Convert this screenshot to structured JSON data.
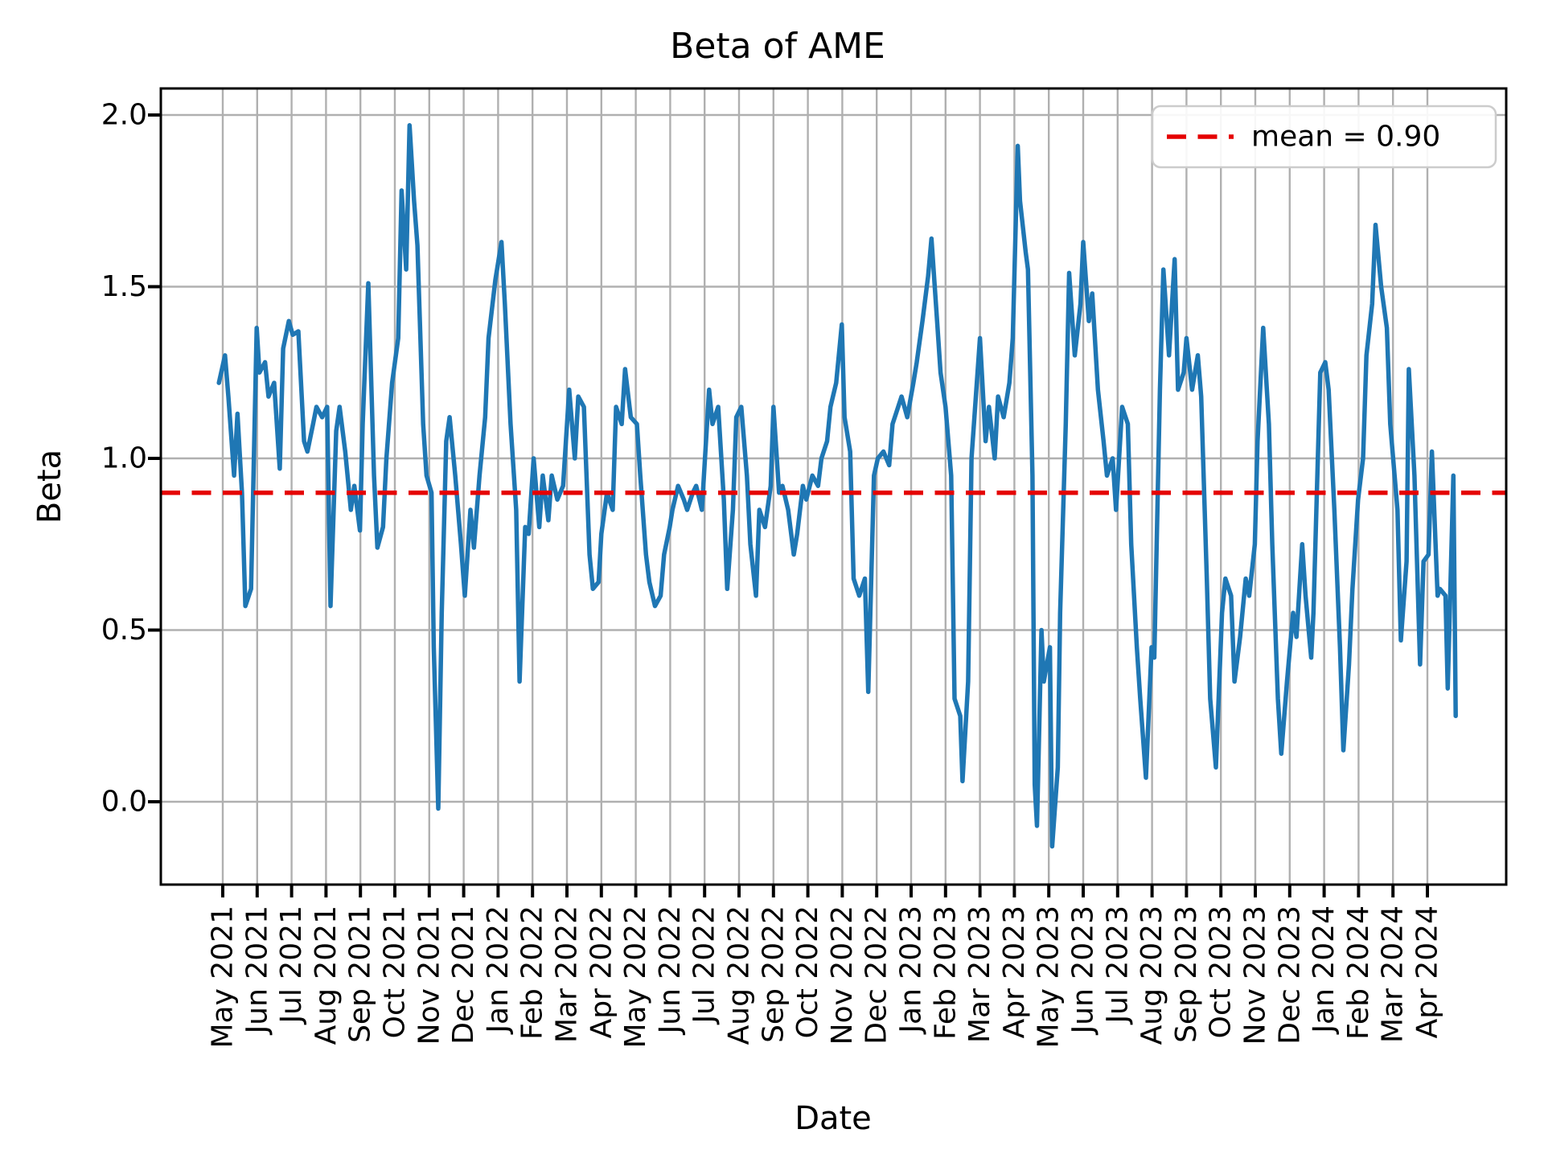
{
  "title": "Beta of AME",
  "axes": {
    "xlabel": "Date",
    "ylabel": "Beta",
    "y_ticks": [
      "2.0",
      "1.5",
      "1.0",
      "0.5",
      "0.0"
    ]
  },
  "legend": {
    "label": "mean = 0.90"
  },
  "colors": {
    "line": "#1f77b4",
    "mean_line": "#e50000",
    "grid": "#b0b0b0",
    "spine": "#000000",
    "legend_border": "#cccccc",
    "background": "#ffffff"
  },
  "chart_data": {
    "type": "line",
    "title": "Beta of AME",
    "xlabel": "Date",
    "ylabel": "Beta",
    "grid": true,
    "legend_position": "upper right",
    "mean": 0.9,
    "mean_label": "mean = 0.90",
    "ylim": [
      -0.24,
      2.08
    ],
    "y_tick_values": [
      0.0,
      0.5,
      1.0,
      1.5,
      2.0
    ],
    "x_tick_labels": [
      "May 2021",
      "Jun 2021",
      "Jul 2021",
      "Aug 2021",
      "Sep 2021",
      "Oct 2021",
      "Nov 2021",
      "Dec 2021",
      "Jan 2022",
      "Feb 2022",
      "Mar 2022",
      "Apr 2022",
      "May 2022",
      "Jun 2022",
      "Jul 2022",
      "Aug 2022",
      "Sep 2022",
      "Oct 2022",
      "Nov 2022",
      "Dec 2022",
      "Jan 2023",
      "Feb 2023",
      "Mar 2023",
      "Apr 2023",
      "May 2023",
      "Jun 2023",
      "Jul 2023",
      "Aug 2023",
      "Sep 2023",
      "Oct 2023",
      "Nov 2023",
      "Dec 2023",
      "Jan 2024",
      "Feb 2024",
      "Mar 2024",
      "Apr 2024"
    ],
    "series": [
      {
        "name": "Beta of AME",
        "points": [
          [
            "2021-04-28",
            1.22
          ],
          [
            "2021-05-03",
            1.3
          ],
          [
            "2021-05-06",
            1.18
          ],
          [
            "2021-05-11",
            0.95
          ],
          [
            "2021-05-14",
            1.13
          ],
          [
            "2021-05-18",
            0.9
          ],
          [
            "2021-05-21",
            0.57
          ],
          [
            "2021-05-26",
            0.62
          ],
          [
            "2021-05-31",
            1.38
          ],
          [
            "2021-06-03",
            1.25
          ],
          [
            "2021-06-08",
            1.28
          ],
          [
            "2021-06-11",
            1.18
          ],
          [
            "2021-06-16",
            1.22
          ],
          [
            "2021-06-21",
            0.97
          ],
          [
            "2021-06-24",
            1.32
          ],
          [
            "2021-06-29",
            1.4
          ],
          [
            "2021-07-02",
            1.36
          ],
          [
            "2021-07-07",
            1.37
          ],
          [
            "2021-07-12",
            1.05
          ],
          [
            "2021-07-15",
            1.02
          ],
          [
            "2021-07-20",
            1.1
          ],
          [
            "2021-07-23",
            1.15
          ],
          [
            "2021-07-28",
            1.12
          ],
          [
            "2021-08-02",
            1.15
          ],
          [
            "2021-08-05",
            0.57
          ],
          [
            "2021-08-10",
            1.08
          ],
          [
            "2021-08-13",
            1.15
          ],
          [
            "2021-08-18",
            1.02
          ],
          [
            "2021-08-23",
            0.85
          ],
          [
            "2021-08-26",
            0.92
          ],
          [
            "2021-08-31",
            0.79
          ],
          [
            "2021-09-03",
            1.1
          ],
          [
            "2021-09-08",
            1.51
          ],
          [
            "2021-09-13",
            0.95
          ],
          [
            "2021-09-16",
            0.74
          ],
          [
            "2021-09-21",
            0.8
          ],
          [
            "2021-09-24",
            1.0
          ],
          [
            "2021-09-29",
            1.22
          ],
          [
            "2021-10-04",
            1.35
          ],
          [
            "2021-10-07",
            1.78
          ],
          [
            "2021-10-11",
            1.55
          ],
          [
            "2021-10-14",
            1.97
          ],
          [
            "2021-10-18",
            1.75
          ],
          [
            "2021-10-21",
            1.62
          ],
          [
            "2021-10-26",
            1.1
          ],
          [
            "2021-10-29",
            0.95
          ],
          [
            "2021-11-03",
            0.9
          ],
          [
            "2021-11-05",
            0.45
          ],
          [
            "2021-11-09",
            -0.02
          ],
          [
            "2021-11-12",
            0.55
          ],
          [
            "2021-11-16",
            1.05
          ],
          [
            "2021-11-19",
            1.12
          ],
          [
            "2021-11-24",
            0.95
          ],
          [
            "2021-11-29",
            0.75
          ],
          [
            "2021-12-02",
            0.6
          ],
          [
            "2021-12-07",
            0.85
          ],
          [
            "2021-12-10",
            0.74
          ],
          [
            "2021-12-15",
            0.95
          ],
          [
            "2021-12-20",
            1.12
          ],
          [
            "2021-12-23",
            1.35
          ],
          [
            "2021-12-29",
            1.52
          ],
          [
            "2022-01-04",
            1.63
          ],
          [
            "2022-01-07",
            1.45
          ],
          [
            "2022-01-12",
            1.1
          ],
          [
            "2022-01-17",
            0.85
          ],
          [
            "2022-01-20",
            0.35
          ],
          [
            "2022-01-25",
            0.8
          ],
          [
            "2022-01-28",
            0.78
          ],
          [
            "2022-02-02",
            1.0
          ],
          [
            "2022-02-07",
            0.8
          ],
          [
            "2022-02-10",
            0.95
          ],
          [
            "2022-02-15",
            0.82
          ],
          [
            "2022-02-18",
            0.95
          ],
          [
            "2022-02-23",
            0.88
          ],
          [
            "2022-02-28",
            0.92
          ],
          [
            "2022-03-03",
            1.2
          ],
          [
            "2022-03-08",
            1.0
          ],
          [
            "2022-03-11",
            1.18
          ],
          [
            "2022-03-16",
            1.15
          ],
          [
            "2022-03-21",
            0.72
          ],
          [
            "2022-03-24",
            0.62
          ],
          [
            "2022-03-29",
            0.64
          ],
          [
            "2022-04-01",
            0.78
          ],
          [
            "2022-04-06",
            0.9
          ],
          [
            "2022-04-11",
            0.85
          ],
          [
            "2022-04-14",
            1.15
          ],
          [
            "2022-04-19",
            1.1
          ],
          [
            "2022-04-22",
            1.26
          ],
          [
            "2022-04-27",
            1.12
          ],
          [
            "2022-05-02",
            1.1
          ],
          [
            "2022-05-05",
            0.95
          ],
          [
            "2022-05-10",
            0.72
          ],
          [
            "2022-05-13",
            0.64
          ],
          [
            "2022-05-18",
            0.57
          ],
          [
            "2022-05-23",
            0.6
          ],
          [
            "2022-05-26",
            0.72
          ],
          [
            "2022-05-31",
            0.8
          ],
          [
            "2022-06-03",
            0.85
          ],
          [
            "2022-06-08",
            0.92
          ],
          [
            "2022-06-13",
            0.88
          ],
          [
            "2022-06-16",
            0.85
          ],
          [
            "2022-06-21",
            0.9
          ],
          [
            "2022-06-24",
            0.92
          ],
          [
            "2022-06-29",
            0.85
          ],
          [
            "2022-07-05",
            1.2
          ],
          [
            "2022-07-08",
            1.1
          ],
          [
            "2022-07-13",
            1.15
          ],
          [
            "2022-07-18",
            0.88
          ],
          [
            "2022-07-21",
            0.62
          ],
          [
            "2022-07-26",
            0.85
          ],
          [
            "2022-07-29",
            1.12
          ],
          [
            "2022-08-03",
            1.15
          ],
          [
            "2022-08-08",
            0.95
          ],
          [
            "2022-08-11",
            0.75
          ],
          [
            "2022-08-16",
            0.6
          ],
          [
            "2022-08-19",
            0.85
          ],
          [
            "2022-08-24",
            0.8
          ],
          [
            "2022-08-29",
            0.92
          ],
          [
            "2022-09-01",
            1.15
          ],
          [
            "2022-09-06",
            0.9
          ],
          [
            "2022-09-09",
            0.92
          ],
          [
            "2022-09-14",
            0.85
          ],
          [
            "2022-09-19",
            0.72
          ],
          [
            "2022-09-22",
            0.78
          ],
          [
            "2022-09-27",
            0.92
          ],
          [
            "2022-09-30",
            0.88
          ],
          [
            "2022-10-05",
            0.95
          ],
          [
            "2022-10-10",
            0.92
          ],
          [
            "2022-10-13",
            1.0
          ],
          [
            "2022-10-18",
            1.05
          ],
          [
            "2022-10-21",
            1.15
          ],
          [
            "2022-10-26",
            1.22
          ],
          [
            "2022-10-31",
            1.39
          ],
          [
            "2022-11-03",
            1.12
          ],
          [
            "2022-11-08",
            1.02
          ],
          [
            "2022-11-11",
            0.65
          ],
          [
            "2022-11-16",
            0.6
          ],
          [
            "2022-11-21",
            0.65
          ],
          [
            "2022-11-24",
            0.32
          ],
          [
            "2022-11-29",
            0.95
          ],
          [
            "2022-12-02",
            1.0
          ],
          [
            "2022-12-07",
            1.02
          ],
          [
            "2022-12-12",
            0.98
          ],
          [
            "2022-12-15",
            1.1
          ],
          [
            "2022-12-20",
            1.15
          ],
          [
            "2022-12-23",
            1.18
          ],
          [
            "2022-12-28",
            1.12
          ],
          [
            "2023-01-03",
            1.22
          ],
          [
            "2023-01-06",
            1.28
          ],
          [
            "2023-01-11",
            1.4
          ],
          [
            "2023-01-16",
            1.53
          ],
          [
            "2023-01-19",
            1.64
          ],
          [
            "2023-01-24",
            1.4
          ],
          [
            "2023-01-27",
            1.25
          ],
          [
            "2023-02-01",
            1.15
          ],
          [
            "2023-02-06",
            0.95
          ],
          [
            "2023-02-09",
            0.3
          ],
          [
            "2023-02-14",
            0.25
          ],
          [
            "2023-02-16",
            0.06
          ],
          [
            "2023-02-21",
            0.35
          ],
          [
            "2023-02-24",
            1.0
          ],
          [
            "2023-03-01",
            1.35
          ],
          [
            "2023-03-06",
            1.05
          ],
          [
            "2023-03-09",
            1.15
          ],
          [
            "2023-03-14",
            1.0
          ],
          [
            "2023-03-17",
            1.18
          ],
          [
            "2023-03-22",
            1.12
          ],
          [
            "2023-03-27",
            1.22
          ],
          [
            "2023-03-30",
            1.35
          ],
          [
            "2023-04-04",
            1.91
          ],
          [
            "2023-04-06",
            1.75
          ],
          [
            "2023-04-11",
            1.6
          ],
          [
            "2023-04-13",
            1.55
          ],
          [
            "2023-04-17",
            0.95
          ],
          [
            "2023-04-19",
            0.05
          ],
          [
            "2023-04-21",
            -0.07
          ],
          [
            "2023-04-25",
            0.5
          ],
          [
            "2023-04-27",
            0.35
          ],
          [
            "2023-05-02",
            0.45
          ],
          [
            "2023-05-04",
            -0.13
          ],
          [
            "2023-05-09",
            0.1
          ],
          [
            "2023-05-11",
            0.55
          ],
          [
            "2023-05-16",
            1.1
          ],
          [
            "2023-05-19",
            1.54
          ],
          [
            "2023-05-24",
            1.3
          ],
          [
            "2023-05-29",
            1.45
          ],
          [
            "2023-06-01",
            1.63
          ],
          [
            "2023-06-06",
            1.4
          ],
          [
            "2023-06-09",
            1.48
          ],
          [
            "2023-06-14",
            1.2
          ],
          [
            "2023-06-19",
            1.05
          ],
          [
            "2023-06-22",
            0.95
          ],
          [
            "2023-06-27",
            1.0
          ],
          [
            "2023-06-30",
            0.85
          ],
          [
            "2023-07-05",
            1.15
          ],
          [
            "2023-07-10",
            1.1
          ],
          [
            "2023-07-13",
            0.75
          ],
          [
            "2023-07-18",
            0.45
          ],
          [
            "2023-07-21",
            0.3
          ],
          [
            "2023-07-26",
            0.07
          ],
          [
            "2023-07-31",
            0.45
          ],
          [
            "2023-08-03",
            0.42
          ],
          [
            "2023-08-08",
            1.2
          ],
          [
            "2023-08-11",
            1.55
          ],
          [
            "2023-08-16",
            1.3
          ],
          [
            "2023-08-21",
            1.58
          ],
          [
            "2023-08-24",
            1.2
          ],
          [
            "2023-08-29",
            1.25
          ],
          [
            "2023-09-01",
            1.35
          ],
          [
            "2023-09-06",
            1.2
          ],
          [
            "2023-09-11",
            1.3
          ],
          [
            "2023-09-14",
            1.18
          ],
          [
            "2023-09-19",
            0.65
          ],
          [
            "2023-09-22",
            0.3
          ],
          [
            "2023-09-27",
            0.1
          ],
          [
            "2023-10-02",
            0.55
          ],
          [
            "2023-10-05",
            0.65
          ],
          [
            "2023-10-10",
            0.6
          ],
          [
            "2023-10-13",
            0.35
          ],
          [
            "2023-10-18",
            0.48
          ],
          [
            "2023-10-23",
            0.65
          ],
          [
            "2023-10-26",
            0.6
          ],
          [
            "2023-10-31",
            0.75
          ],
          [
            "2023-11-03",
            1.05
          ],
          [
            "2023-11-08",
            1.38
          ],
          [
            "2023-11-13",
            1.1
          ],
          [
            "2023-11-16",
            0.75
          ],
          [
            "2023-11-21",
            0.3
          ],
          [
            "2023-11-24",
            0.14
          ],
          [
            "2023-11-29",
            0.35
          ],
          [
            "2023-12-04",
            0.55
          ],
          [
            "2023-12-07",
            0.48
          ],
          [
            "2023-12-12",
            0.75
          ],
          [
            "2023-12-15",
            0.6
          ],
          [
            "2023-12-20",
            0.42
          ],
          [
            "2023-12-22",
            0.55
          ],
          [
            "2023-12-28",
            1.25
          ],
          [
            "2024-01-02",
            1.28
          ],
          [
            "2024-01-05",
            1.2
          ],
          [
            "2024-01-10",
            0.85
          ],
          [
            "2024-01-15",
            0.45
          ],
          [
            "2024-01-18",
            0.15
          ],
          [
            "2024-01-23",
            0.4
          ],
          [
            "2024-01-26",
            0.62
          ],
          [
            "2024-01-31",
            0.88
          ],
          [
            "2024-02-05",
            1.0
          ],
          [
            "2024-02-08",
            1.3
          ],
          [
            "2024-02-13",
            1.45
          ],
          [
            "2024-02-16",
            1.68
          ],
          [
            "2024-02-21",
            1.5
          ],
          [
            "2024-02-26",
            1.38
          ],
          [
            "2024-02-29",
            1.1
          ],
          [
            "2024-03-05",
            0.85
          ],
          [
            "2024-03-08",
            0.47
          ],
          [
            "2024-03-13",
            0.7
          ],
          [
            "2024-03-15",
            1.26
          ],
          [
            "2024-03-20",
            0.95
          ],
          [
            "2024-03-25",
            0.4
          ],
          [
            "2024-03-28",
            0.7
          ],
          [
            "2024-04-02",
            0.72
          ],
          [
            "2024-04-05",
            1.02
          ],
          [
            "2024-04-10",
            0.6
          ],
          [
            "2024-04-12",
            0.62
          ],
          [
            "2024-04-17",
            0.6
          ],
          [
            "2024-04-19",
            0.33
          ],
          [
            "2024-04-24",
            0.95
          ],
          [
            "2024-04-26",
            0.25
          ]
        ]
      }
    ]
  }
}
